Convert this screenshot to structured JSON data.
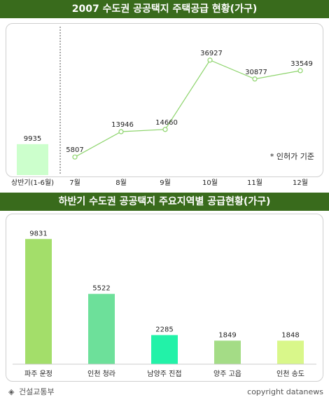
{
  "chart_title_1": "2007 수도권 공공택지 주택공급 현황(가구)",
  "chart_title_2": "하반기 수도권 공공택지 주요지역별 공급현황(가구)",
  "chart_data": [
    {
      "type": "bar+line",
      "first_half": {
        "label": "상반기(1-6월)",
        "value": 9935,
        "color": "#ccffcc"
      },
      "line": {
        "categories": [
          "7월",
          "8월",
          "9월",
          "10월",
          "11월",
          "12월"
        ],
        "values": [
          5807,
          13946,
          14660,
          36927,
          30877,
          33549
        ],
        "color": "#8dd46c"
      },
      "annotation": "* 인허가 기준"
    },
    {
      "type": "bar",
      "categories": [
        "파주 운정",
        "인천 청라",
        "남양주 진접",
        "양주 고읍",
        "인천 송도"
      ],
      "values": [
        9831,
        5522,
        2285,
        1849,
        1848
      ],
      "colors": [
        "#a3de6a",
        "#6de09a",
        "#22f2a8",
        "#a4dc86",
        "#d9f78a"
      ]
    }
  ],
  "footer": {
    "source_mark": "◈",
    "source": "건설교통부",
    "copyright": "copyright datanews"
  }
}
